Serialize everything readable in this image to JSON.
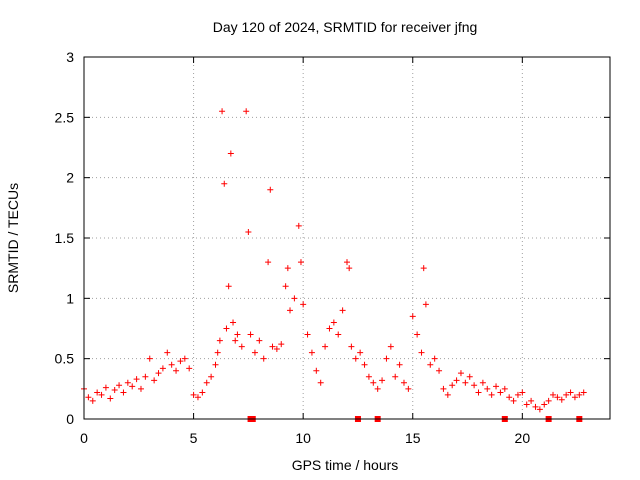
{
  "chart_data": {
    "type": "scatter",
    "title": "Day 120 of 2024, SRMTID for receiver jfng",
    "xlabel": "GPS time / hours",
    "ylabel": "SRMTID / TECUs",
    "xlim": [
      0,
      24
    ],
    "ylim": [
      0,
      3
    ],
    "xticks": [
      0,
      5,
      10,
      15,
      20
    ],
    "yticks": [
      0,
      0.5,
      1,
      1.5,
      2,
      2.5,
      3
    ],
    "xtick_labels": [
      "0",
      "5",
      "10",
      "15",
      "20"
    ],
    "ytick_labels": [
      "0",
      "0.5",
      "1",
      "1.5",
      "2",
      "2.5",
      "3"
    ],
    "grid": true,
    "marker": "plus",
    "color": "#ff0000",
    "series": [
      {
        "name": "SRMTID",
        "x": [
          0.0,
          0.2,
          0.4,
          0.6,
          0.8,
          1.0,
          1.2,
          1.4,
          1.6,
          1.8,
          2.0,
          2.2,
          2.4,
          2.6,
          2.8,
          3.0,
          3.2,
          3.4,
          3.6,
          3.8,
          4.0,
          4.2,
          4.4,
          4.6,
          4.8,
          5.0,
          5.2,
          5.4,
          5.6,
          5.8,
          6.0,
          6.1,
          6.2,
          6.3,
          6.4,
          6.5,
          6.6,
          6.7,
          6.8,
          6.9,
          7.0,
          7.2,
          7.4,
          7.5,
          7.6,
          7.8,
          8.0,
          8.2,
          8.4,
          8.5,
          8.6,
          8.8,
          9.0,
          9.2,
          9.3,
          9.4,
          9.6,
          9.8,
          9.9,
          10.0,
          10.2,
          10.4,
          10.6,
          10.8,
          11.0,
          11.2,
          11.4,
          11.6,
          11.8,
          12.0,
          12.1,
          12.2,
          12.4,
          12.6,
          12.8,
          13.0,
          13.2,
          13.4,
          13.6,
          13.8,
          14.0,
          14.2,
          14.4,
          14.6,
          14.8,
          15.0,
          15.2,
          15.4,
          15.5,
          15.6,
          15.8,
          16.0,
          16.2,
          16.4,
          16.6,
          16.8,
          17.0,
          17.2,
          17.4,
          17.6,
          17.8,
          18.0,
          18.2,
          18.4,
          18.6,
          18.8,
          19.0,
          19.2,
          19.4,
          19.6,
          19.8,
          20.0,
          20.2,
          20.4,
          20.6,
          20.8,
          21.0,
          21.2,
          21.4,
          21.6,
          21.8,
          22.0,
          22.2,
          22.4,
          22.6,
          22.8
        ],
        "y": [
          0.25,
          0.18,
          0.15,
          0.22,
          0.2,
          0.26,
          0.17,
          0.24,
          0.28,
          0.22,
          0.3,
          0.27,
          0.33,
          0.25,
          0.35,
          0.5,
          0.32,
          0.38,
          0.42,
          0.55,
          0.45,
          0.4,
          0.48,
          0.5,
          0.42,
          0.2,
          0.18,
          0.22,
          0.3,
          0.35,
          0.45,
          0.55,
          0.65,
          2.55,
          1.95,
          0.75,
          1.1,
          2.2,
          0.8,
          0.65,
          0.7,
          0.6,
          2.55,
          1.55,
          0.7,
          0.55,
          0.65,
          0.5,
          1.3,
          1.9,
          0.6,
          0.58,
          0.62,
          1.1,
          1.25,
          0.9,
          1.0,
          1.6,
          1.3,
          0.95,
          0.7,
          0.55,
          0.4,
          0.3,
          0.6,
          0.75,
          0.8,
          0.7,
          0.9,
          1.3,
          1.25,
          0.6,
          0.5,
          0.55,
          0.45,
          0.35,
          0.3,
          0.25,
          0.32,
          0.5,
          0.6,
          0.35,
          0.45,
          0.3,
          0.25,
          0.85,
          0.7,
          0.55,
          1.25,
          0.95,
          0.45,
          0.5,
          0.4,
          0.25,
          0.2,
          0.28,
          0.32,
          0.38,
          0.3,
          0.35,
          0.28,
          0.22,
          0.3,
          0.25,
          0.2,
          0.27,
          0.22,
          0.25,
          0.18,
          0.15,
          0.2,
          0.22,
          0.12,
          0.15,
          0.1,
          0.08,
          0.12,
          0.15,
          0.2,
          0.18,
          0.16,
          0.2,
          0.22,
          0.18,
          0.2,
          0.22
        ],
        "zero_markers_x": [
          7.6,
          7.7,
          12.5,
          13.4,
          19.2,
          21.2,
          22.6
        ]
      }
    ]
  }
}
